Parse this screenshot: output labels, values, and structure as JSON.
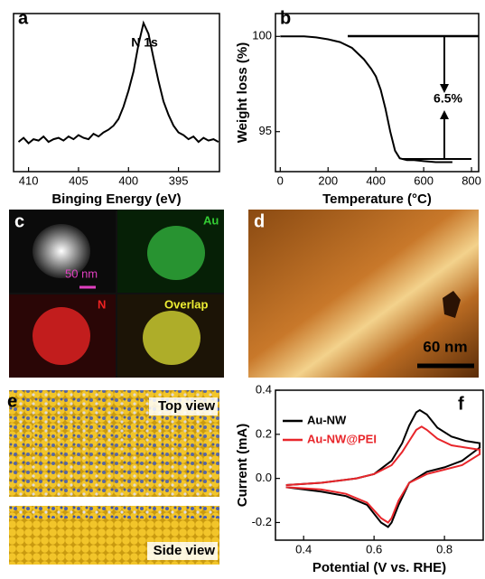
{
  "chart_data": [
    {
      "type": "line",
      "label": "a",
      "annotation": "N 1s",
      "xlabel": "Binging Energy (eV)",
      "x": [
        411,
        410.5,
        410,
        409.5,
        409,
        408.5,
        408,
        407.5,
        407,
        406.5,
        406,
        405.5,
        405,
        404.5,
        404,
        403.5,
        403,
        402.5,
        402,
        401.5,
        401,
        400.5,
        400,
        399.5,
        399,
        398.5,
        398,
        397.5,
        397,
        396.5,
        396,
        395.5,
        395,
        394.5,
        394,
        393.5,
        393,
        392.5,
        392,
        391.5,
        391
      ],
      "values": [
        10,
        13,
        9,
        12,
        11,
        14,
        10,
        12,
        13,
        11,
        14,
        12,
        15,
        13,
        12,
        16,
        14,
        17,
        19,
        22,
        27,
        36,
        48,
        62,
        82,
        98,
        90,
        72,
        55,
        40,
        30,
        22,
        17,
        15,
        12,
        14,
        10,
        13,
        11,
        12,
        10
      ],
      "color": "#000000",
      "xlim": [
        411.5,
        390.9
      ],
      "ylim": [
        -12,
        105
      ],
      "xticks": [
        410,
        405,
        400,
        395
      ]
    },
    {
      "type": "line",
      "label": "b",
      "annotation": "6.5%",
      "xlabel": "Temperature (°C)",
      "ylabel": "Weight loss (%)",
      "x": [
        0,
        50,
        100,
        150,
        200,
        250,
        300,
        350,
        380,
        400,
        420,
        440,
        460,
        480,
        500,
        530,
        560,
        600,
        650,
        700,
        720
      ],
      "values": [
        100,
        100,
        100,
        99.95,
        99.85,
        99.7,
        99.4,
        98.8,
        98.3,
        97.9,
        97.2,
        96.2,
        95,
        94,
        93.6,
        93.5,
        93.5,
        93.45,
        93.4,
        93.4,
        93.4
      ],
      "color": "#000000",
      "xlim": [
        -20,
        830
      ],
      "ylim": [
        92.9,
        101.2
      ],
      "xticks": [
        0,
        200,
        400,
        600,
        800
      ],
      "yticks": [
        95,
        100
      ]
    },
    {
      "type": "line",
      "label": "f",
      "xlabel": "Potential (V vs. RHE)",
      "ylabel": "Current (mA)",
      "xlim": [
        0.32,
        0.91
      ],
      "ylim": [
        -0.28,
        0.4
      ],
      "xticks": [
        0.4,
        0.6,
        0.8
      ],
      "yticks": [
        -0.2,
        {
          "value": 0,
          "label": "0.0"
        },
        0.2,
        0.4
      ],
      "series": [
        {
          "name": "Au-NW",
          "color": "#000000",
          "x": [
            0.35,
            0.45,
            0.55,
            0.6,
            0.65,
            0.68,
            0.7,
            0.72,
            0.73,
            0.75,
            0.78,
            0.82,
            0.86,
            0.9,
            0.9,
            0.85,
            0.8,
            0.75,
            0.7,
            0.67,
            0.65,
            0.64,
            0.62,
            0.58,
            0.52,
            0.45,
            0.35
          ],
          "values": [
            -0.03,
            -0.02,
            0.0,
            0.02,
            0.08,
            0.16,
            0.24,
            0.3,
            0.31,
            0.29,
            0.23,
            0.19,
            0.17,
            0.16,
            0.14,
            0.08,
            0.05,
            0.03,
            -0.02,
            -0.12,
            -0.2,
            -0.22,
            -0.2,
            -0.12,
            -0.08,
            -0.06,
            -0.04
          ]
        },
        {
          "name": "Au-NW@PEI",
          "color": "#e8262b",
          "x": [
            0.35,
            0.45,
            0.55,
            0.6,
            0.65,
            0.68,
            0.7,
            0.72,
            0.735,
            0.75,
            0.78,
            0.82,
            0.86,
            0.9,
            0.9,
            0.85,
            0.8,
            0.75,
            0.7,
            0.67,
            0.65,
            0.64,
            0.62,
            0.58,
            0.52,
            0.45,
            0.35
          ],
          "values": [
            -0.03,
            -0.02,
            0.0,
            0.02,
            0.06,
            0.12,
            0.17,
            0.22,
            0.235,
            0.22,
            0.18,
            0.15,
            0.14,
            0.13,
            0.11,
            0.06,
            0.04,
            0.02,
            -0.02,
            -0.1,
            -0.18,
            -0.2,
            -0.18,
            -0.11,
            -0.07,
            -0.05,
            -0.04
          ]
        }
      ]
    }
  ],
  "panels": {
    "c": {
      "label": "c",
      "scale_bar": "50 nm",
      "au": "Au",
      "n": "N",
      "overlap": "Overlap"
    },
    "d": {
      "label": "d",
      "scale_bar": "60 nm"
    },
    "e": {
      "label": "e",
      "top": "Top view",
      "side": "Side view"
    }
  }
}
